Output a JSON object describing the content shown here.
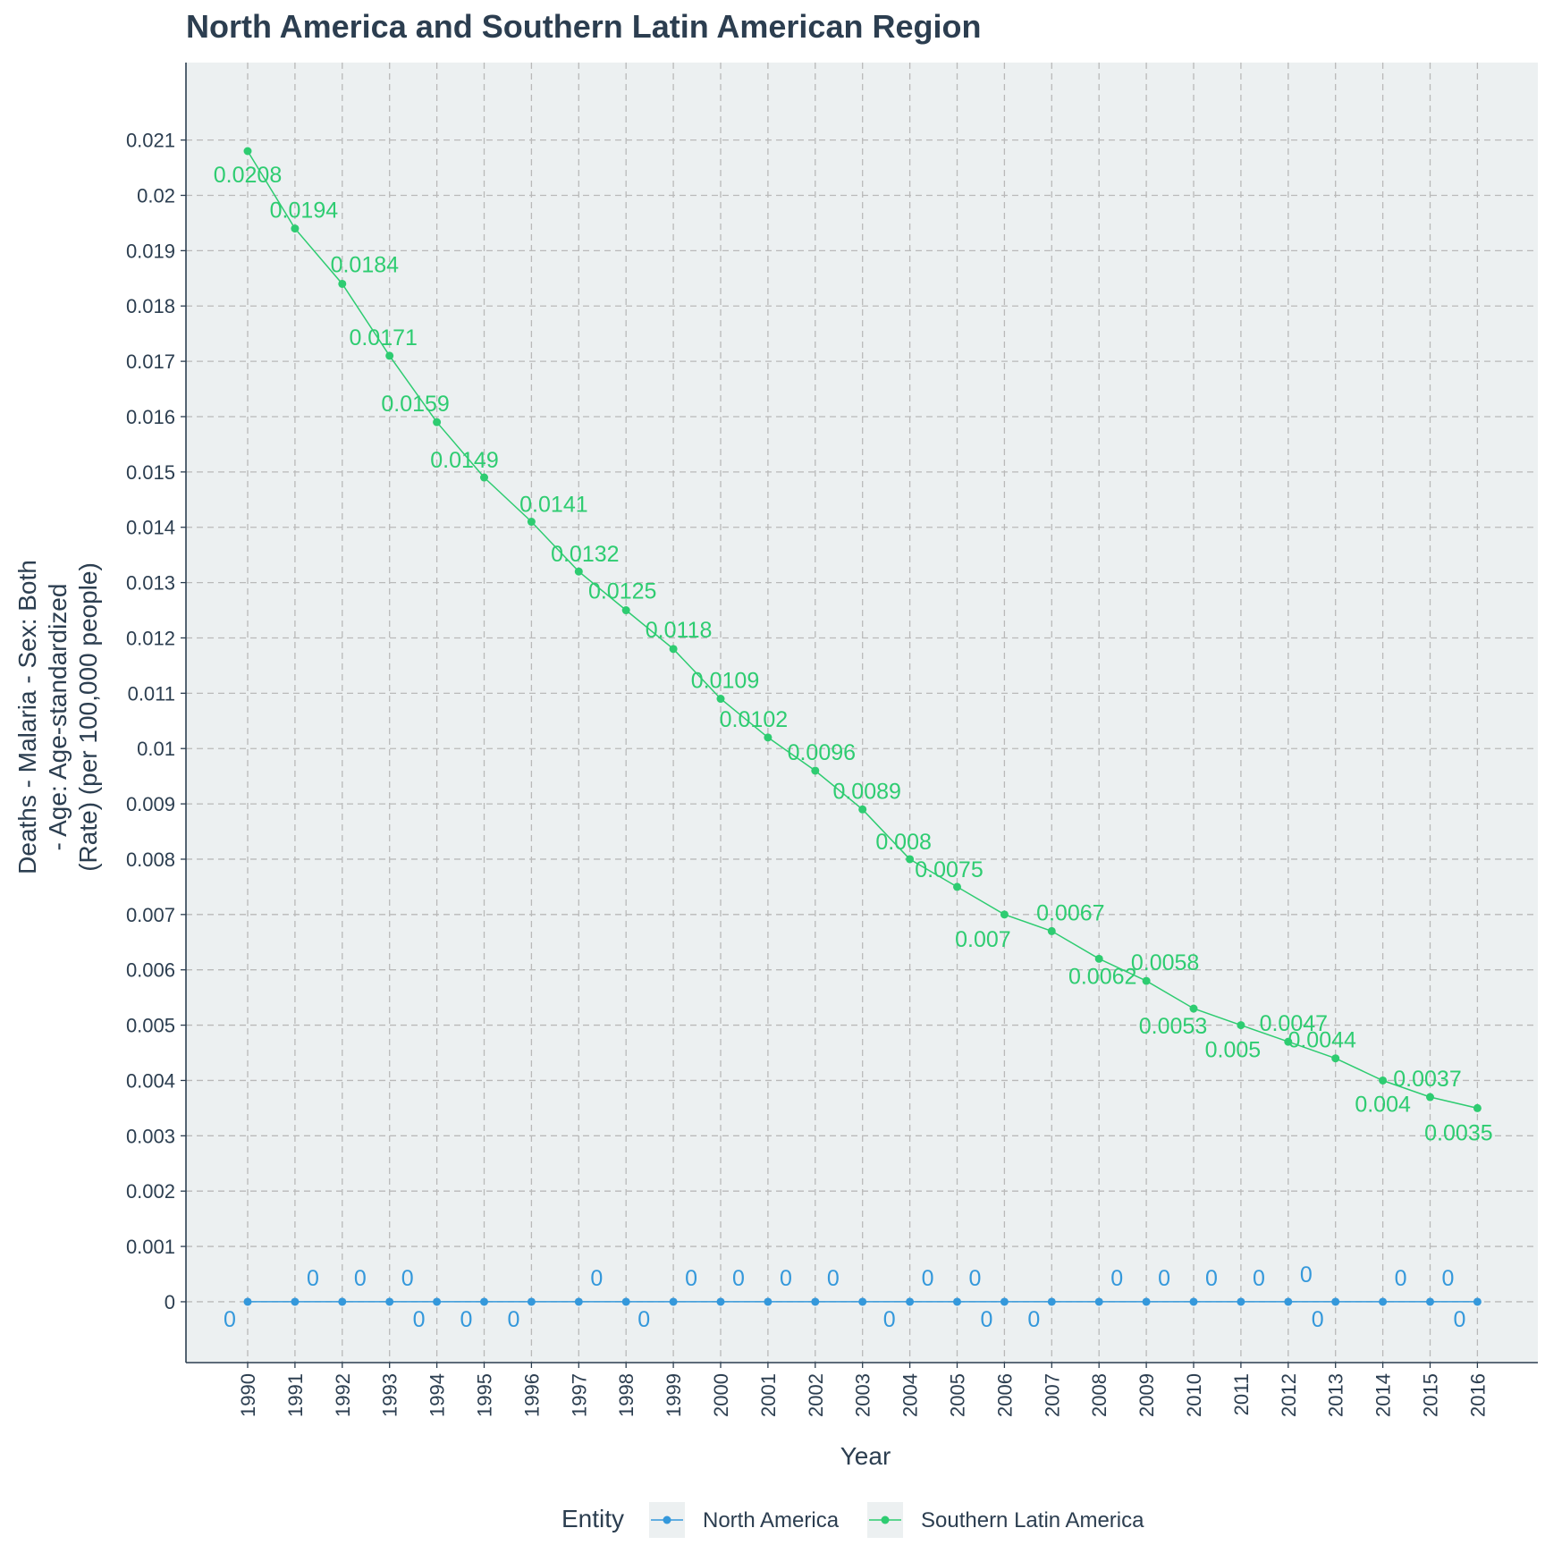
{
  "chart_data": {
    "type": "line",
    "title": "North America and Southern Latin American Region",
    "xlabel": "Year",
    "ylabel_lines": [
      "Deaths - Malaria - Sex: Both",
      "- Age: Age-standardized",
      "(Rate) (per 100,000 people)"
    ],
    "x": [
      1990,
      1991,
      1992,
      1993,
      1994,
      1995,
      1996,
      1997,
      1998,
      1999,
      2000,
      2001,
      2002,
      2003,
      2004,
      2005,
      2006,
      2007,
      2008,
      2009,
      2010,
      2011,
      2012,
      2013,
      2014,
      2015,
      2016
    ],
    "x_tick_labels": [
      "1990",
      "1991",
      "1992",
      "1993",
      "1994",
      "1995",
      "1996",
      "1997",
      "1998",
      "1999",
      "2000",
      "2001",
      "2002",
      "2003",
      "2004",
      "2005",
      "2006",
      "2007",
      "2008",
      "2009",
      "2010",
      "2011",
      "2012",
      "2013",
      "2014",
      "2015",
      "2016"
    ],
    "ylim": [
      -0.0011,
      0.0224
    ],
    "y_ticks": [
      0,
      0.001,
      0.002,
      0.003,
      0.004,
      0.005,
      0.006,
      0.007,
      0.008,
      0.009,
      0.01,
      0.011,
      0.012,
      0.013,
      0.014,
      0.015,
      0.016,
      0.017,
      0.018,
      0.019,
      0.02,
      0.021
    ],
    "y_tick_labels": [
      "0",
      "0.001",
      "0.002",
      "0.003",
      "0.004",
      "0.005",
      "0.006",
      "0.007",
      "0.008",
      "0.009",
      "0.01",
      "0.011",
      "0.012",
      "0.013",
      "0.014",
      "0.015",
      "0.016",
      "0.017",
      "0.018",
      "0.019",
      "0.02",
      "0.021"
    ],
    "grid": true,
    "legend_title": "Entity",
    "legend_position": "bottom",
    "series": [
      {
        "name": "North America",
        "color": "#3498db",
        "values": [
          0,
          0,
          0,
          0,
          0,
          0,
          0,
          0,
          0,
          0,
          0,
          0,
          0,
          0,
          0,
          0,
          0,
          0,
          0,
          0,
          0,
          0,
          0,
          0,
          0,
          0,
          0
        ],
        "labels": [
          "0",
          "0",
          "0",
          "0",
          "0",
          "0",
          "0",
          "0",
          "0",
          "0",
          "0",
          "0",
          "0",
          "0",
          "0",
          "0",
          "0",
          "0",
          "0",
          "0",
          "0",
          "0",
          "0",
          "0",
          "0",
          "0",
          "0"
        ]
      },
      {
        "name": "Southern Latin America",
        "color": "#2ecc71",
        "values": [
          0.0208,
          0.0194,
          0.0184,
          0.0171,
          0.0159,
          0.0149,
          0.0141,
          0.0132,
          0.0125,
          0.0118,
          0.0109,
          0.0102,
          0.0096,
          0.0089,
          0.008,
          0.0075,
          0.007,
          0.0067,
          0.0062,
          0.0058,
          0.0053,
          0.005,
          0.0047,
          0.0044,
          0.004,
          0.0037,
          0.0035
        ],
        "labels": [
          "0.0208",
          "0.0194",
          "0.0184",
          "0.0171",
          "0.0159",
          "0.0149",
          "0.0141",
          "0.0132",
          "0.0125",
          "0.0118",
          "0.0109",
          "0.0102",
          "0.0096",
          "0.0089",
          "0.008",
          "0.0075",
          "0.007",
          "0.0067",
          "0.0062",
          "0.0058",
          "0.0053",
          "0.005",
          "0.0047",
          "0.0044",
          "0.004",
          "0.0037",
          "0.0035"
        ]
      }
    ]
  }
}
